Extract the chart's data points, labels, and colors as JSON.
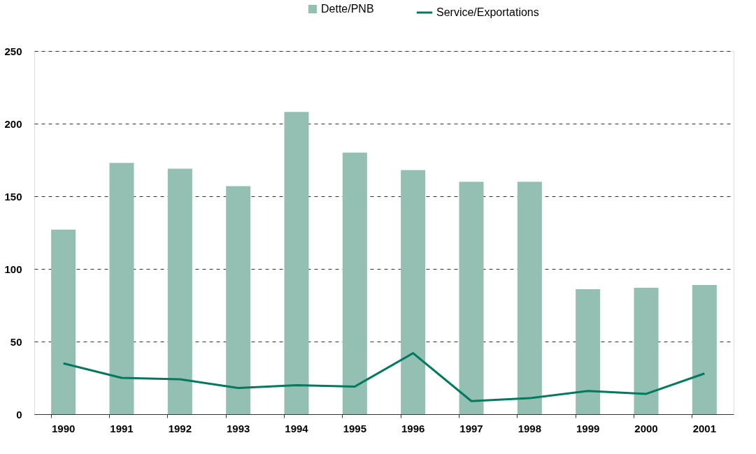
{
  "chart_data": {
    "type": "bar",
    "categories": [
      "1990",
      "1991",
      "1992",
      "1993",
      "1994",
      "1995",
      "1996",
      "1997",
      "1998",
      "1999",
      "2000",
      "2001"
    ],
    "series": [
      {
        "name": "Dette/PNB",
        "color": "#94bfb3",
        "values": [
          127,
          173,
          169,
          157,
          208,
          180,
          168,
          160,
          160,
          86,
          87,
          89
        ]
      },
      {
        "name": "Service/Exportations",
        "type": "line",
        "color": "#007a5e",
        "values": [
          35,
          25,
          24,
          18,
          20,
          19,
          42,
          9,
          11,
          16,
          14,
          28
        ]
      }
    ],
    "ylim": [
      0,
      250
    ],
    "yticks": [
      0,
      50,
      100,
      150,
      200,
      250
    ],
    "grid": "y",
    "legend": "top",
    "marker": "none",
    "line_style": "solid"
  }
}
